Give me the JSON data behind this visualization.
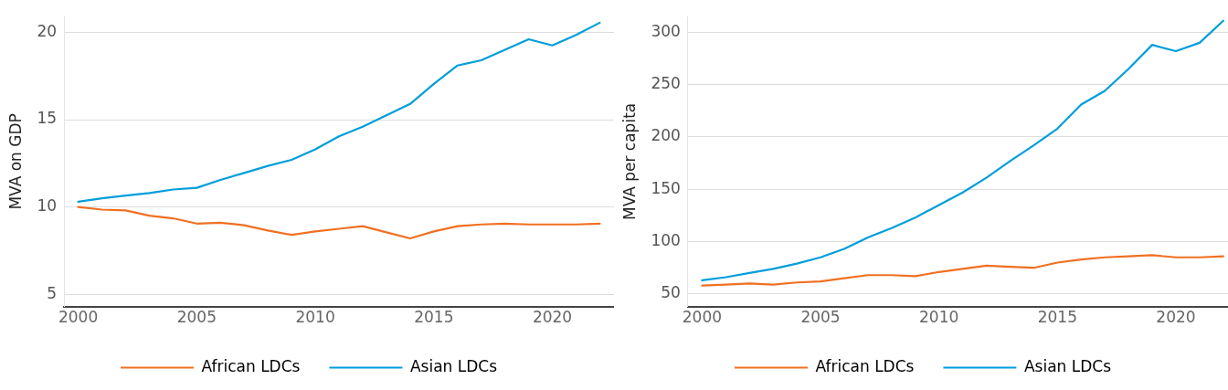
{
  "chart_data": [
    {
      "type": "line",
      "ylabel": "MVA on GDP",
      "x": [
        2000,
        2001,
        2002,
        2003,
        2004,
        2005,
        2006,
        2007,
        2008,
        2009,
        2010,
        2011,
        2012,
        2013,
        2014,
        2015,
        2016,
        2017,
        2018,
        2019,
        2020,
        2021,
        2022
      ],
      "series": [
        {
          "name": "African LDCs",
          "color": "#f07022",
          "values": [
            10.0,
            9.85,
            9.8,
            9.5,
            9.35,
            9.05,
            9.1,
            8.95,
            8.65,
            8.4,
            8.6,
            8.75,
            8.9,
            8.55,
            8.2,
            8.6,
            8.9,
            9.0,
            9.05,
            9.0,
            9.0,
            9.0,
            9.05
          ]
        },
        {
          "name": "Asian LDCs",
          "color": "#009edb",
          "values": [
            10.3,
            10.5,
            10.65,
            10.8,
            11.0,
            11.1,
            11.55,
            11.95,
            12.35,
            12.7,
            13.3,
            14.05,
            14.6,
            15.25,
            15.9,
            17.05,
            18.1,
            18.4,
            19.0,
            19.6,
            19.25,
            19.85,
            20.55
          ]
        }
      ],
      "xlim": [
        1999.4,
        2022.6
      ],
      "xticks": [
        2000,
        2005,
        2010,
        2015,
        2020
      ],
      "ylim": [
        4.3,
        20.9
      ],
      "yticks": [
        5,
        10,
        15,
        20
      ],
      "grid": "y",
      "legend": "bottom",
      "marker": "none",
      "line_style": "solid"
    },
    {
      "type": "line",
      "ylabel": "MVA per capita",
      "x": [
        2000,
        2001,
        2002,
        2003,
        2004,
        2005,
        2006,
        2007,
        2008,
        2009,
        2010,
        2011,
        2012,
        2013,
        2014,
        2015,
        2016,
        2017,
        2018,
        2019,
        2020,
        2021,
        2022
      ],
      "series": [
        {
          "name": "African LDCs",
          "color": "#f07022",
          "values": [
            58,
            59,
            60,
            59,
            61,
            62,
            65,
            68,
            68,
            67,
            71,
            74,
            77,
            76,
            75,
            80,
            83,
            85,
            86,
            87,
            85,
            85,
            86
          ]
        },
        {
          "name": "Asian LDCs",
          "color": "#009edb",
          "values": [
            63,
            66,
            70,
            74,
            79,
            85,
            93,
            104,
            113,
            123,
            135,
            147,
            161,
            177,
            192,
            208,
            231,
            244,
            265,
            288,
            282,
            290,
            311
          ]
        }
      ],
      "xlim": [
        1999.4,
        2022.2
      ],
      "xticks": [
        2000,
        2005,
        2010,
        2015,
        2020
      ],
      "ylim": [
        38,
        315
      ],
      "yticks": [
        50,
        100,
        150,
        200,
        250,
        300
      ],
      "grid": "y",
      "legend": "bottom",
      "marker": "none",
      "line_style": "solid"
    }
  ]
}
